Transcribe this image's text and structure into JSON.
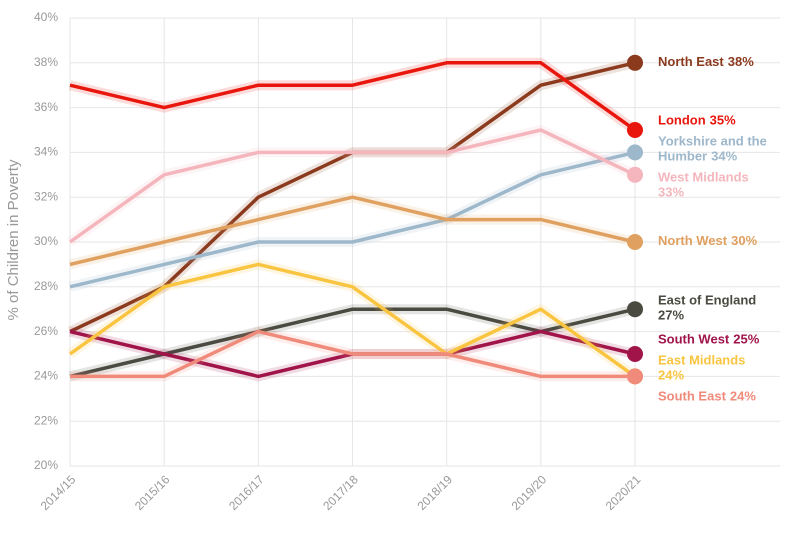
{
  "chart_data": {
    "type": "line",
    "y_axis_label": "% of Children in Poverty",
    "categories": [
      "2014/15",
      "2015/16",
      "2016/17",
      "2017/18",
      "2018/19",
      "2019/20",
      "2020/21"
    ],
    "ylim": [
      20,
      40
    ],
    "yticks": [
      {
        "value": 20,
        "label": "20%"
      },
      {
        "value": 22,
        "label": "22%"
      },
      {
        "value": 24,
        "label": "24%"
      },
      {
        "value": 26,
        "label": "26%"
      },
      {
        "value": 28,
        "label": "28%"
      },
      {
        "value": 30,
        "label": "30%"
      },
      {
        "value": 32,
        "label": "32%"
      },
      {
        "value": 34,
        "label": "34%"
      },
      {
        "value": 36,
        "label": "36%"
      },
      {
        "value": 38,
        "label": "38%"
      },
      {
        "value": 40,
        "label": "40%"
      }
    ],
    "grid": true,
    "series": [
      {
        "name": "North East",
        "color": "#8b3a1e",
        "values": [
          26,
          28,
          32,
          34,
          34,
          37,
          38
        ],
        "value_labels": [
          null,
          null,
          null,
          null,
          null,
          null,
          "38%"
        ]
      },
      {
        "name": "London",
        "color": "#e8160c",
        "values": [
          37,
          36,
          37,
          37,
          38,
          38,
          35
        ],
        "value_labels": [
          null,
          null,
          null,
          null,
          null,
          null,
          "35%"
        ]
      },
      {
        "name": "Yorkshire and the Humber",
        "color": "#9db7cb",
        "values": [
          28,
          29,
          30,
          30,
          31,
          33,
          34
        ],
        "value_labels": [
          null,
          null,
          null,
          null,
          null,
          null,
          "34%"
        ]
      },
      {
        "name": "West Midlands",
        "color": "#f4b6bc",
        "values": [
          30,
          33,
          34,
          34,
          34,
          35,
          33
        ],
        "value_labels": [
          null,
          null,
          null,
          null,
          null,
          null,
          "33%"
        ]
      },
      {
        "name": "North West",
        "color": "#e0a060",
        "values": [
          29,
          30,
          31,
          32,
          31,
          31,
          30
        ],
        "value_labels": [
          null,
          null,
          null,
          null,
          null,
          null,
          "30%"
        ]
      },
      {
        "name": "East of England",
        "color": "#4a4a40",
        "values": [
          24,
          25,
          26,
          27,
          27,
          26,
          27
        ],
        "value_labels": [
          null,
          null,
          null,
          null,
          null,
          null,
          "27%"
        ]
      },
      {
        "name": "South West",
        "color": "#a0144a",
        "values": [
          26,
          25,
          24,
          25,
          25,
          26,
          25
        ],
        "value_labels": [
          null,
          null,
          null,
          null,
          null,
          null,
          "25%"
        ]
      },
      {
        "name": "East Midlands",
        "color": "#f9c540",
        "values": [
          25,
          28,
          29,
          28,
          25,
          27,
          24
        ],
        "value_labels": [
          null,
          null,
          null,
          null,
          null,
          null,
          "24%"
        ]
      },
      {
        "name": "South East",
        "color": "#f08a7a",
        "values": [
          24,
          24,
          26,
          25,
          25,
          24,
          24
        ],
        "value_labels": [
          null,
          null,
          null,
          null,
          null,
          null,
          "24%"
        ]
      }
    ]
  }
}
